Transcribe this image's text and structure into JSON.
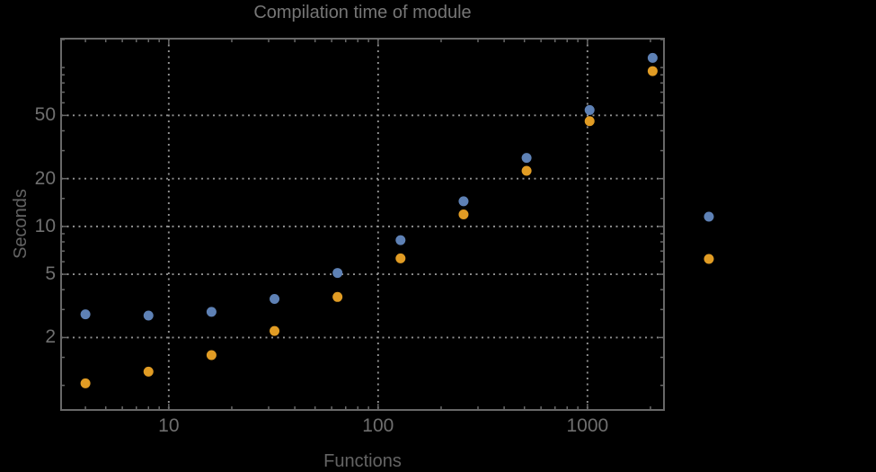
{
  "title": "Compilation time of module",
  "colors": {
    "background": "#000000",
    "frame": "#686868",
    "grid": "#919191",
    "tick_label_text": "#6f6f6f",
    "title_text": "#767676",
    "axis_label_text": "#646464",
    "series1": "#5e81b5",
    "series2": "#e19c24"
  },
  "legend": {
    "labels_visible": false,
    "marker_colors": [
      "#5e81b5",
      "#e19c24"
    ]
  },
  "chart_data": {
    "type": "scatter",
    "title": "Compilation time of module",
    "xlabel": "Functions",
    "ylabel": "Seconds",
    "x_scale": "log",
    "y_scale": "log",
    "xlim": [
      3.06,
      2320
    ],
    "ylim": [
      0.7,
      152
    ],
    "grid": "dotted at major ticks",
    "legend_position": "right of frame, labels not visible",
    "x": [
      4,
      8,
      16,
      32,
      64,
      128,
      256,
      512,
      1024,
      2048
    ],
    "series": [
      {
        "name": "series-1-blue",
        "color": "#5e81b5",
        "values": [
          2.8,
          2.75,
          2.9,
          3.5,
          5.1,
          8.2,
          14.4,
          27,
          54,
          115
        ]
      },
      {
        "name": "series-2-orange",
        "color": "#e19c24",
        "values": [
          1.03,
          1.22,
          1.55,
          2.2,
          3.6,
          6.3,
          11.9,
          22.4,
          46,
          95
        ]
      }
    ],
    "x_major_ticks": {
      "values": [
        10,
        100,
        1000
      ],
      "labels": [
        "10",
        "100",
        "1000"
      ]
    },
    "y_major_ticks": {
      "values": [
        2,
        5,
        10,
        20,
        50
      ],
      "labels": [
        "2",
        "5",
        "10",
        "20",
        "50"
      ]
    },
    "x_minor_ticks": [
      4,
      5,
      6,
      7,
      8,
      9,
      20,
      30,
      40,
      50,
      60,
      70,
      80,
      90,
      200,
      300,
      400,
      500,
      600,
      700,
      800,
      900,
      2000
    ],
    "y_minor_ticks": [
      1,
      1.5,
      3,
      4,
      6,
      7,
      8,
      9,
      15,
      30,
      40,
      60,
      70,
      80,
      90,
      100,
      150
    ],
    "marker_radius_px": 5.5
  }
}
